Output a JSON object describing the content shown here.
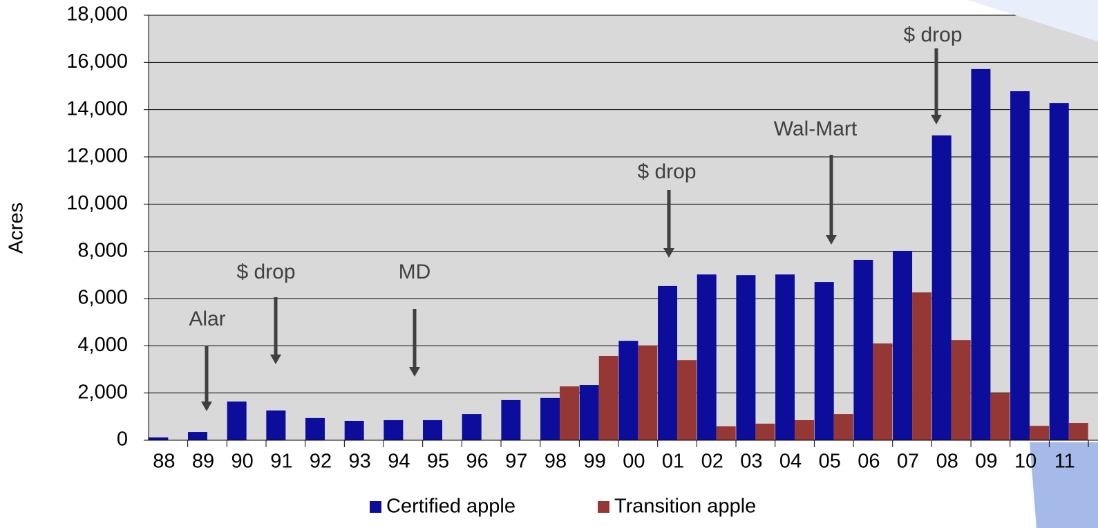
{
  "chart_data": {
    "type": "bar",
    "y_label": "Acres",
    "categories": [
      "88",
      "89",
      "90",
      "91",
      "92",
      "93",
      "94",
      "95",
      "96",
      "97",
      "98",
      "99",
      "00",
      "01",
      "02",
      "03",
      "04",
      "05",
      "06",
      "07",
      "08",
      "09",
      "10",
      "11"
    ],
    "series": [
      {
        "name": "Certified apple",
        "color": "#0d0d9c",
        "values": [
          120,
          350,
          1640,
          1260,
          940,
          820,
          850,
          850,
          1110,
          1700,
          1790,
          2340,
          4210,
          6530,
          7020,
          6990,
          7020,
          6700,
          7640,
          8020,
          12910,
          15720,
          14780,
          14280
        ]
      },
      {
        "name": "Transition apple",
        "color": "#953735",
        "values": [
          null,
          null,
          null,
          null,
          null,
          null,
          null,
          null,
          null,
          null,
          2280,
          3570,
          4010,
          3390,
          590,
          700,
          850,
          1110,
          4100,
          6260,
          4240,
          1990,
          610,
          730
        ]
      }
    ],
    "ylim": [
      0,
      18000
    ],
    "yticks": [
      0,
      {
        "value": 2000,
        "label": "2,000"
      },
      {
        "value": 4000,
        "label": "4,000"
      },
      {
        "value": 6000,
        "label": "6,000"
      },
      {
        "value": 8000,
        "label": "8,000"
      },
      {
        "value": 10000,
        "label": "10,000"
      },
      {
        "value": 12000,
        "label": "12,000"
      },
      {
        "value": 14000,
        "label": "14,000"
      },
      {
        "value": 16000,
        "label": "16,000"
      },
      {
        "value": 18000,
        "label": "18,000"
      }
    ],
    "grid": true,
    "legend": "bottom",
    "annotations": [
      {
        "text": "Alar"
      },
      {
        "text": "$ drop"
      },
      {
        "text": "MD"
      },
      {
        "text": "$ drop"
      },
      {
        "text": "Wal-Mart"
      },
      {
        "text": "$ drop"
      }
    ]
  }
}
